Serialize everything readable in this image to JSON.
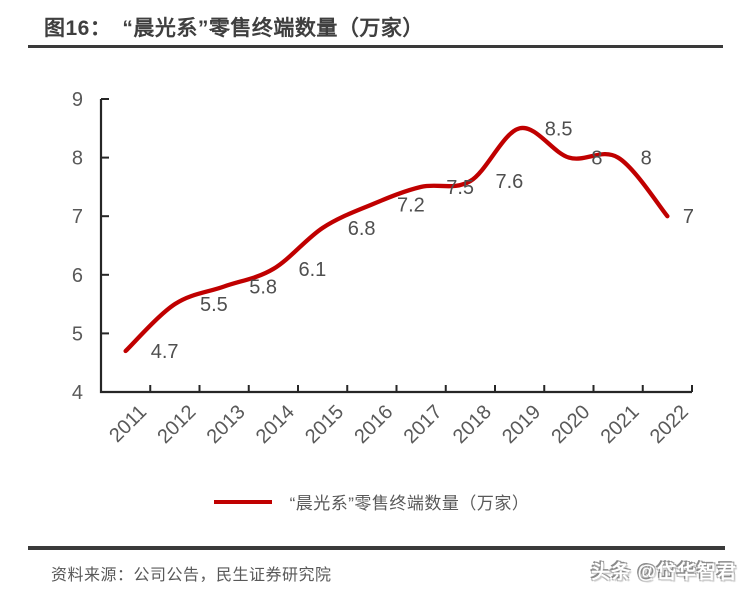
{
  "chart_data": {
    "type": "line",
    "title": "图16：　“晨光系”零售终端数量（万家）",
    "categories": [
      "2011",
      "2012",
      "2013",
      "2014",
      "2015",
      "2016",
      "2017",
      "2018",
      "2019",
      "2020",
      "2021",
      "2022"
    ],
    "series": [
      {
        "name": "“晨光系”零售终端数量（万家）",
        "values": [
          4.7,
          5.5,
          5.8,
          6.1,
          6.8,
          7.2,
          7.5,
          7.6,
          8.5,
          8,
          8,
          7
        ]
      }
    ],
    "data_labels": [
      "4.7",
      "5.5",
      "5.8",
      "6.1",
      "6.8",
      "7.2",
      "7.5",
      "7.6",
      "8.5",
      "8",
      "8",
      "7"
    ],
    "xlabel": "",
    "ylabel": "",
    "ylim": [
      4,
      9
    ],
    "yticks": [
      4,
      5,
      6,
      7,
      8,
      9
    ],
    "grid": false,
    "legend_position": "bottom",
    "line_color": "#C00000",
    "curve": "smooth"
  },
  "footer": {
    "source": "资料来源：公司公告，民生证券研究院",
    "watermark": "头条 @岱华智君"
  },
  "colors": {
    "accent": "#C00000",
    "axis": "#262626",
    "tick_text": "#595959",
    "title_text": "#3F3F3F",
    "rule": "#3A3A3A",
    "background": "#FFFFFF"
  }
}
